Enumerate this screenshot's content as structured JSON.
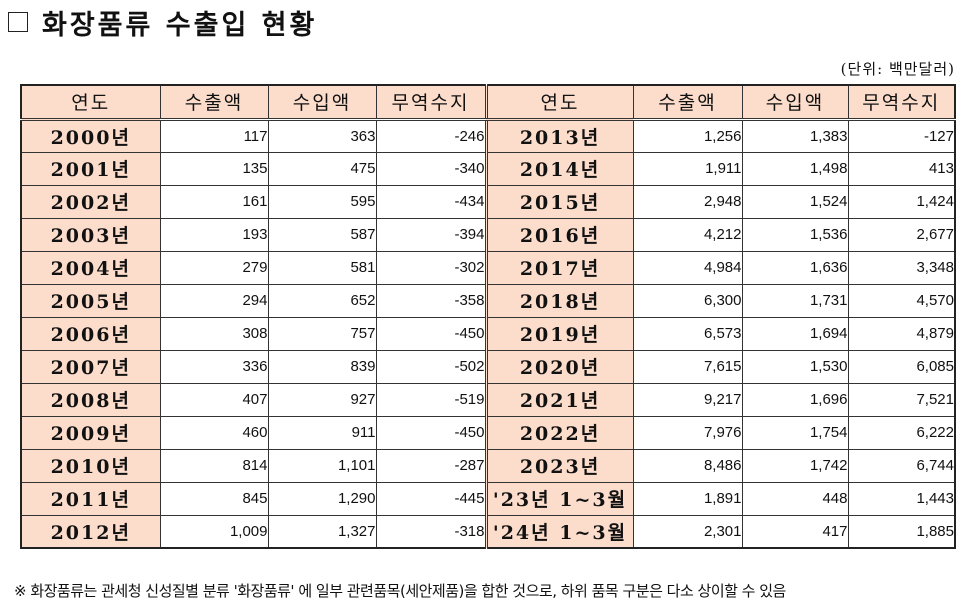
{
  "title": "화장품류 수출입 현황",
  "unit": "(단위: 백만달러)",
  "headers": [
    "연도",
    "수출액",
    "수입액",
    "무역수지",
    "연도",
    "수출액",
    "수입액",
    "무역수지"
  ],
  "rows": [
    {
      "y1": "2000년",
      "e1": "117",
      "i1": "363",
      "b1": "-246",
      "y2": "2013년",
      "e2": "1,256",
      "i2": "1,383",
      "b2": "-127"
    },
    {
      "y1": "2001년",
      "e1": "135",
      "i1": "475",
      "b1": "-340",
      "y2": "2014년",
      "e2": "1,911",
      "i2": "1,498",
      "b2": "413"
    },
    {
      "y1": "2002년",
      "e1": "161",
      "i1": "595",
      "b1": "-434",
      "y2": "2015년",
      "e2": "2,948",
      "i2": "1,524",
      "b2": "1,424"
    },
    {
      "y1": "2003년",
      "e1": "193",
      "i1": "587",
      "b1": "-394",
      "y2": "2016년",
      "e2": "4,212",
      "i2": "1,536",
      "b2": "2,677"
    },
    {
      "y1": "2004년",
      "e1": "279",
      "i1": "581",
      "b1": "-302",
      "y2": "2017년",
      "e2": "4,984",
      "i2": "1,636",
      "b2": "3,348"
    },
    {
      "y1": "2005년",
      "e1": "294",
      "i1": "652",
      "b1": "-358",
      "y2": "2018년",
      "e2": "6,300",
      "i2": "1,731",
      "b2": "4,570"
    },
    {
      "y1": "2006년",
      "e1": "308",
      "i1": "757",
      "b1": "-450",
      "y2": "2019년",
      "e2": "6,573",
      "i2": "1,694",
      "b2": "4,879"
    },
    {
      "y1": "2007년",
      "e1": "336",
      "i1": "839",
      "b1": "-502",
      "y2": "2020년",
      "e2": "7,615",
      "i2": "1,530",
      "b2": "6,085"
    },
    {
      "y1": "2008년",
      "e1": "407",
      "i1": "927",
      "b1": "-519",
      "y2": "2021년",
      "e2": "9,217",
      "i2": "1,696",
      "b2": "7,521"
    },
    {
      "y1": "2009년",
      "e1": "460",
      "i1": "911",
      "b1": "-450",
      "y2": "2022년",
      "e2": "7,976",
      "i2": "1,754",
      "b2": "6,222"
    },
    {
      "y1": "2010년",
      "e1": "814",
      "i1": "1,101",
      "b1": "-287",
      "y2": "2023년",
      "e2": "8,486",
      "i2": "1,742",
      "b2": "6,744"
    },
    {
      "y1": "2011년",
      "e1": "845",
      "i1": "1,290",
      "b1": "-445",
      "y2": "'23년 1~3월",
      "e2": "1,891",
      "i2": "448",
      "b2": "1,443"
    },
    {
      "y1": "2012년",
      "e1": "1,009",
      "i1": "1,327",
      "b1": "-318",
      "y2": "'24년 1~3월",
      "e2": "2,301",
      "i2": "417",
      "b2": "1,885"
    }
  ],
  "footnote": "※ 화장품류는 관세청 신성질별 분류 '화장품류' 에 일부 관련품목(세안제품)을 합한 것으로, 하위 품목 구분은 다소 상이할 수 있음",
  "colors": {
    "header_bg": "#fcdccb",
    "border": "#333333"
  }
}
